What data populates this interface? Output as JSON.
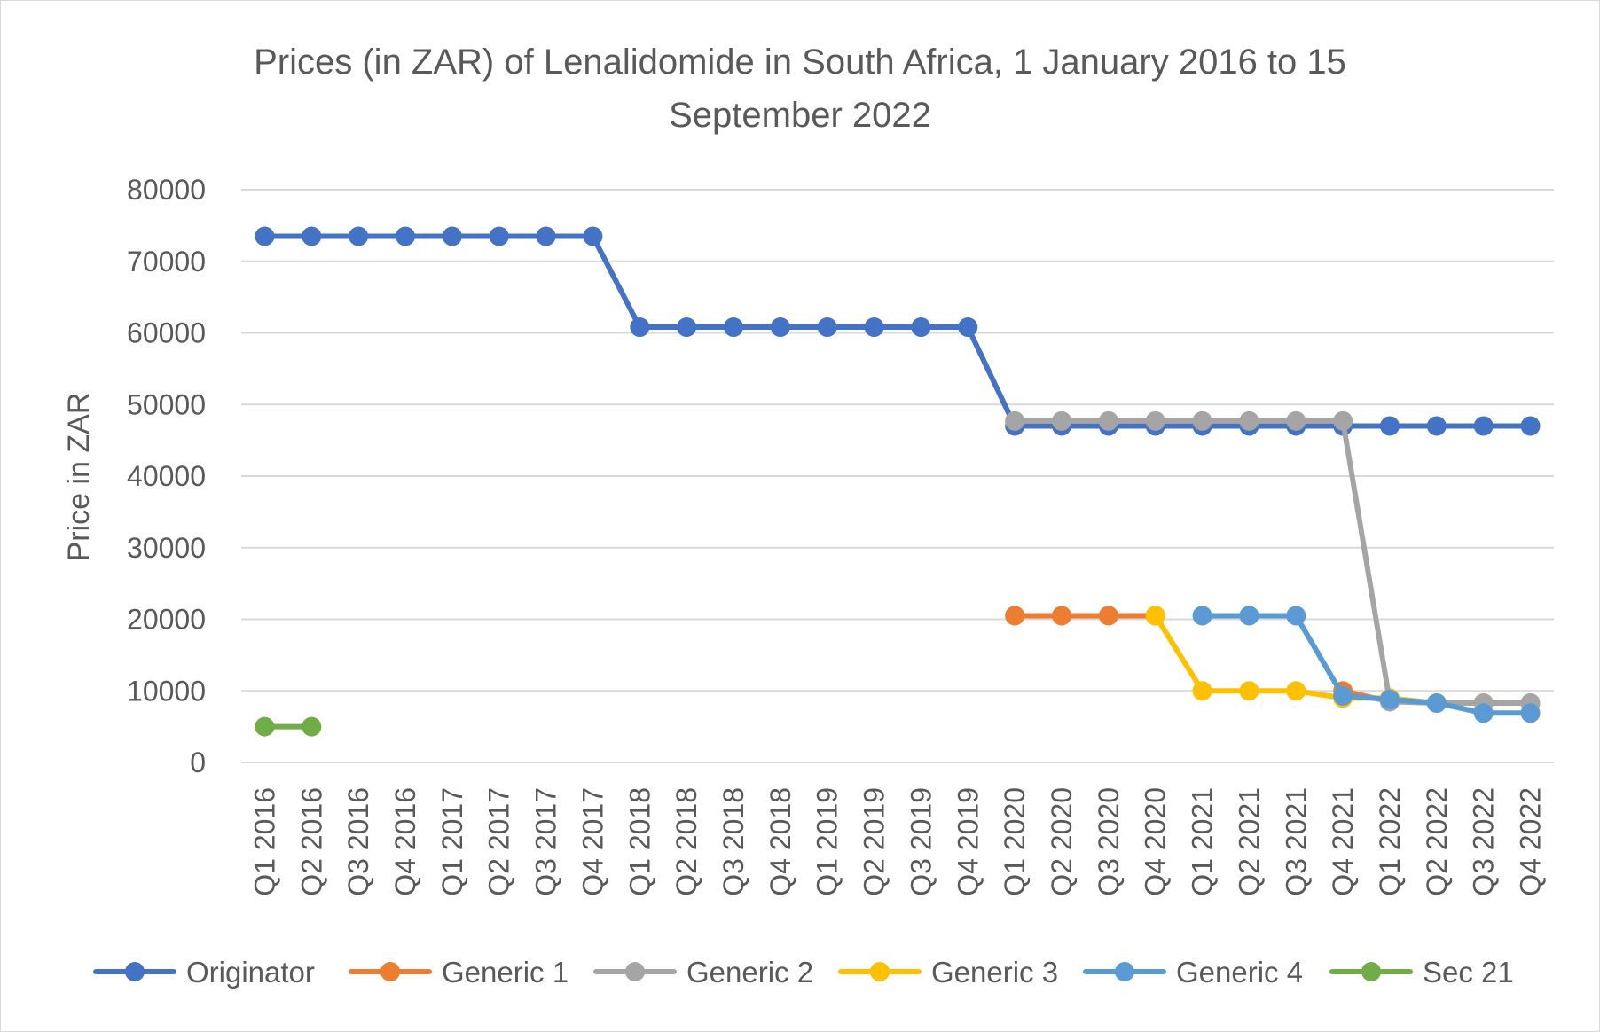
{
  "chart_data": {
    "type": "line",
    "title_lines": [
      "Prices (in ZAR) of Lenalidomide in South Africa, 1 January 2016 to 15",
      "September 2022"
    ],
    "xlabel": "",
    "ylabel": "Price in ZAR",
    "ylim": [
      0,
      80000
    ],
    "yticks": [
      0,
      10000,
      20000,
      30000,
      40000,
      50000,
      60000,
      70000,
      80000
    ],
    "grid": true,
    "legend_position": "bottom",
    "categories": [
      "Q1 2016",
      "Q2 2016",
      "Q3 2016",
      "Q4 2016",
      "Q1 2017",
      "Q2 2017",
      "Q3 2017",
      "Q4 2017",
      "Q1 2018",
      "Q2 2018",
      "Q3 2018",
      "Q4 2018",
      "Q1 2019",
      "Q2 2019",
      "Q3 2019",
      "Q4 2019",
      "Q1 2020",
      "Q2 2020",
      "Q3 2020",
      "Q4 2020",
      "Q1 2021",
      "Q2 2021",
      "Q3 2021",
      "Q4 2021",
      "Q1 2022",
      "Q2 2022",
      "Q3 2022",
      "Q4 2022"
    ],
    "series": [
      {
        "name": "Originator",
        "color": "#4472c4",
        "values": [
          73500,
          73500,
          73500,
          73500,
          73500,
          73500,
          73500,
          73500,
          60800,
          60800,
          60800,
          60800,
          60800,
          60800,
          60800,
          60800,
          47000,
          47000,
          47000,
          47000,
          47000,
          47000,
          47000,
          47000,
          47000,
          47000,
          47000,
          47000
        ]
      },
      {
        "name": "Generic 1",
        "color": "#ed7d31",
        "values": [
          null,
          null,
          null,
          null,
          null,
          null,
          null,
          null,
          null,
          null,
          null,
          null,
          null,
          null,
          null,
          null,
          20500,
          20500,
          20500,
          20500,
          null,
          null,
          null,
          10000,
          8500,
          null,
          null,
          null
        ]
      },
      {
        "name": "Generic 2",
        "color": "#a5a5a5",
        "values": [
          null,
          null,
          null,
          null,
          null,
          null,
          null,
          null,
          null,
          null,
          null,
          null,
          null,
          null,
          null,
          null,
          47700,
          47700,
          47700,
          47700,
          47700,
          47700,
          47700,
          47700,
          8500,
          8300,
          8300,
          8300
        ]
      },
      {
        "name": "Generic 3",
        "color": "#ffc000",
        "values": [
          null,
          null,
          null,
          null,
          null,
          null,
          null,
          null,
          null,
          null,
          null,
          null,
          null,
          null,
          null,
          null,
          null,
          null,
          null,
          20500,
          10000,
          10000,
          10000,
          9000,
          9000,
          8300,
          8300,
          8300
        ]
      },
      {
        "name": "Generic 4",
        "color": "#5b9bd5",
        "values": [
          null,
          null,
          null,
          null,
          null,
          null,
          null,
          null,
          null,
          null,
          null,
          null,
          null,
          null,
          null,
          null,
          null,
          null,
          null,
          null,
          20500,
          20500,
          20500,
          9300,
          8800,
          8300,
          6900,
          6900
        ]
      },
      {
        "name": "Sec 21",
        "color": "#70ad47",
        "values": [
          5000,
          5000,
          null,
          null,
          null,
          null,
          null,
          null,
          null,
          null,
          null,
          null,
          null,
          null,
          null,
          null,
          null,
          null,
          null,
          null,
          null,
          null,
          null,
          null,
          null,
          null,
          null,
          null
        ]
      }
    ]
  }
}
